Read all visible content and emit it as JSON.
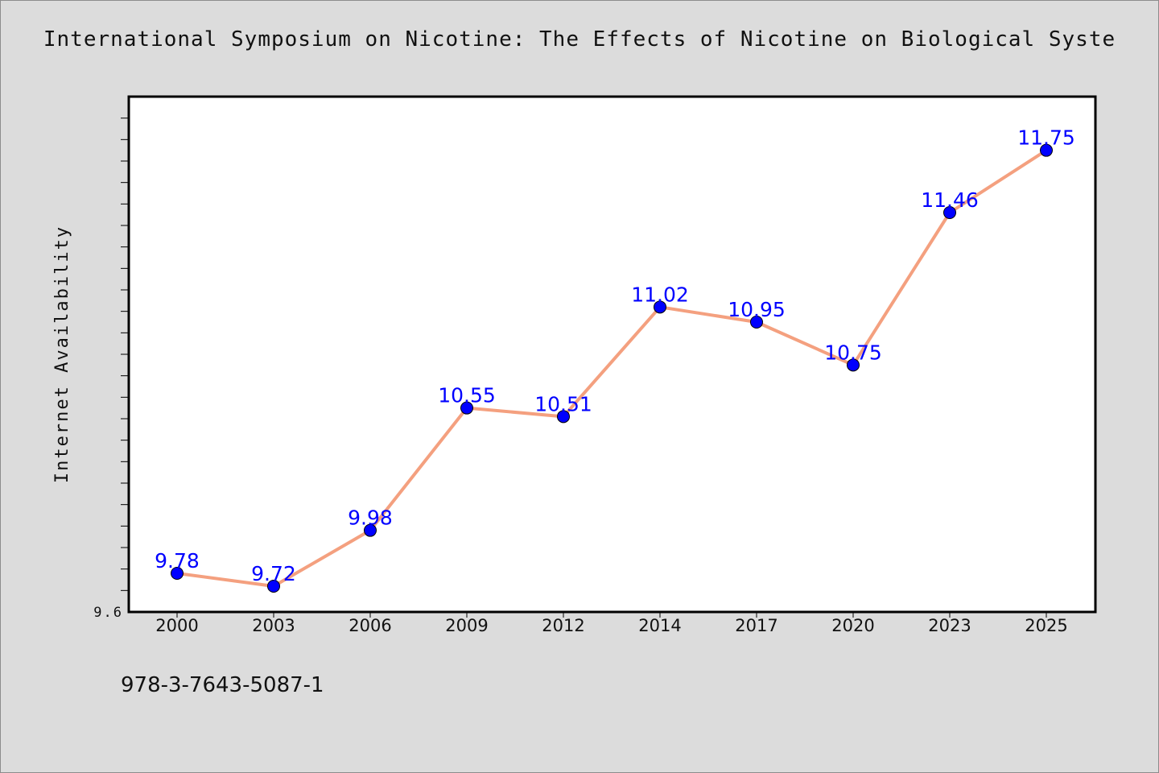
{
  "chart_data": {
    "type": "line",
    "title": "International Symposium on Nicotine: The Effects of Nicotine on Biological Syste",
    "xlabel": "",
    "ylabel": "Internet Availability",
    "categories": [
      "2000",
      "2003",
      "2006",
      "2009",
      "2012",
      "2014",
      "2017",
      "2020",
      "2023",
      "2025"
    ],
    "series": [
      {
        "values": [
          9.78,
          9.72,
          9.98,
          10.55,
          10.51,
          11.02,
          10.95,
          10.75,
          11.46,
          11.75
        ]
      }
    ],
    "ylim": [
      9.6,
      12.0
    ],
    "y_tick_labels": [
      "9.6"
    ],
    "grid": false,
    "legend": "none",
    "data_labels": true,
    "colors": {
      "line": "#f4a07f",
      "marker": "#0000ff",
      "label": "#0000ff",
      "background": "#dcdcdc",
      "plot_background": "#ffffff"
    }
  },
  "footer": {
    "isbn": "978-3-7643-5087-1"
  }
}
